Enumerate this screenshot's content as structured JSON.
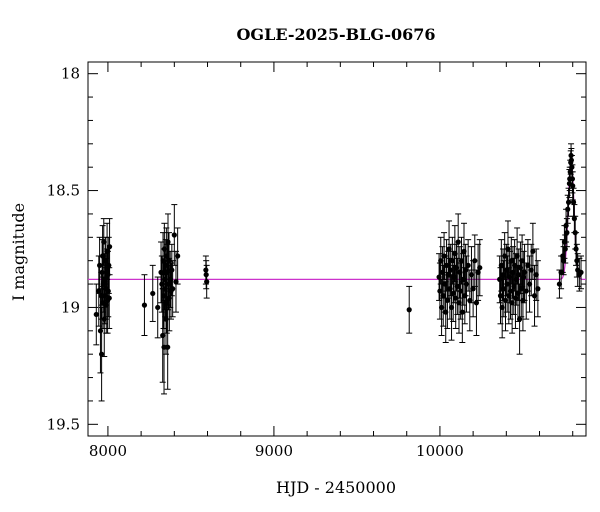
{
  "chart_data": {
    "type": "scatter",
    "title": "OGLE-2025-BLG-0676",
    "xlabel": "HJD - 2450000",
    "ylabel": "I magnitude",
    "xlim": [
      7880,
      10880
    ],
    "ylim": [
      19.55,
      17.95
    ],
    "y_inverted": true,
    "x_ticks": [
      8000,
      9000,
      10000
    ],
    "y_ticks": [
      18,
      18.5,
      19,
      19.5
    ],
    "y_tick_labels": [
      "18",
      "18.5",
      "19",
      "19.5"
    ],
    "colors": {
      "points": "#000000",
      "model": "#cc33cc"
    },
    "model": {
      "name": "",
      "baseline": 18.88,
      "peak_mag": 18.37,
      "t0": 10790,
      "tE": 25
    },
    "series": [
      {
        "points": [
          [
            7930,
            19.03,
            0.13
          ],
          [
            7945,
            18.93,
            0.15
          ],
          [
            7950,
            18.82,
            0.12
          ],
          [
            7955,
            19.1,
            0.18
          ],
          [
            7960,
            18.95,
            0.1
          ],
          [
            7962,
            19.2,
            0.2
          ],
          [
            7965,
            18.85,
            0.14
          ],
          [
            7968,
            18.78,
            0.13
          ],
          [
            7970,
            18.98,
            0.11
          ],
          [
            7972,
            18.9,
            0.12
          ],
          [
            7975,
            18.72,
            0.1
          ],
          [
            7978,
            19.05,
            0.16
          ],
          [
            7980,
            18.88,
            0.11
          ],
          [
            7982,
            18.95,
            0.12
          ],
          [
            7985,
            18.8,
            0.1
          ],
          [
            7988,
            18.92,
            0.13
          ],
          [
            7990,
            18.99,
            0.12
          ],
          [
            7992,
            18.85,
            0.1
          ],
          [
            7995,
            18.76,
            0.12
          ],
          [
            7998,
            18.97,
            0.14
          ],
          [
            8000,
            18.86,
            0.1
          ],
          [
            8002,
            18.93,
            0.11
          ],
          [
            8005,
            18.82,
            0.12
          ],
          [
            8008,
            18.96,
            0.13
          ],
          [
            8010,
            18.74,
            0.12
          ],
          [
            8220,
            18.99,
            0.13
          ],
          [
            8270,
            18.94,
            0.12
          ],
          [
            8300,
            19.0,
            0.13
          ],
          [
            8320,
            18.85,
            0.13
          ],
          [
            8325,
            18.9,
            0.12
          ],
          [
            8330,
            19.12,
            0.2
          ],
          [
            8332,
            18.8,
            0.12
          ],
          [
            8335,
            18.95,
            0.14
          ],
          [
            8338,
            19.17,
            0.2
          ],
          [
            8340,
            18.75,
            0.11
          ],
          [
            8342,
            18.88,
            0.13
          ],
          [
            8345,
            18.92,
            0.12
          ],
          [
            8348,
            18.82,
            0.11
          ],
          [
            8350,
            19.05,
            0.15
          ],
          [
            8352,
            18.78,
            0.12
          ],
          [
            8355,
            18.98,
            0.13
          ],
          [
            8358,
            18.85,
            0.12
          ],
          [
            8360,
            19.17,
            0.18
          ],
          [
            8362,
            18.72,
            0.12
          ],
          [
            8365,
            18.9,
            0.11
          ],
          [
            8368,
            18.8,
            0.12
          ],
          [
            8370,
            18.96,
            0.14
          ],
          [
            8375,
            18.88,
            0.12
          ],
          [
            8380,
            18.93,
            0.12
          ],
          [
            8385,
            18.84,
            0.11
          ],
          [
            8390,
            18.92,
            0.12
          ],
          [
            8400,
            18.69,
            0.13
          ],
          [
            8410,
            18.89,
            0.13
          ],
          [
            8420,
            18.78,
            0.12
          ],
          [
            8590,
            18.84,
            0.06
          ],
          [
            8592,
            18.86,
            0.06
          ],
          [
            8595,
            18.89,
            0.07
          ],
          [
            9815,
            19.01,
            0.1
          ],
          [
            9995,
            18.87,
            0.1
          ],
          [
            10000,
            18.93,
            0.12
          ],
          [
            10005,
            18.8,
            0.1
          ],
          [
            10010,
            19.0,
            0.12
          ],
          [
            10015,
            18.85,
            0.11
          ],
          [
            10020,
            18.95,
            0.13
          ],
          [
            10025,
            18.78,
            0.1
          ],
          [
            10030,
            18.9,
            0.12
          ],
          [
            10035,
            19.02,
            0.13
          ],
          [
            10040,
            18.82,
            0.11
          ],
          [
            10045,
            18.97,
            0.12
          ],
          [
            10050,
            18.86,
            0.1
          ],
          [
            10055,
            18.75,
            0.12
          ],
          [
            10060,
            18.92,
            0.13
          ],
          [
            10065,
            18.84,
            0.11
          ],
          [
            10070,
            19.0,
            0.14
          ],
          [
            10075,
            18.8,
            0.1
          ],
          [
            10080,
            18.94,
            0.12
          ],
          [
            10085,
            18.87,
            0.11
          ],
          [
            10090,
            18.77,
            0.12
          ],
          [
            10095,
            18.96,
            0.13
          ],
          [
            10100,
            18.83,
            0.1
          ],
          [
            10105,
            18.91,
            0.12
          ],
          [
            10110,
            18.72,
            0.12
          ],
          [
            10115,
            18.98,
            0.13
          ],
          [
            10120,
            18.85,
            0.11
          ],
          [
            10125,
            18.93,
            0.12
          ],
          [
            10130,
            18.8,
            0.1
          ],
          [
            10135,
            19.02,
            0.13
          ],
          [
            10140,
            18.88,
            0.11
          ],
          [
            10145,
            18.76,
            0.12
          ],
          [
            10150,
            18.95,
            0.12
          ],
          [
            10155,
            18.84,
            0.11
          ],
          [
            10160,
            18.9,
            0.12
          ],
          [
            10170,
            18.82,
            0.11
          ],
          [
            10180,
            18.97,
            0.13
          ],
          [
            10190,
            18.86,
            0.12
          ],
          [
            10200,
            18.92,
            0.12
          ],
          [
            10210,
            18.8,
            0.11
          ],
          [
            10220,
            18.98,
            0.14
          ],
          [
            10230,
            18.85,
            0.12
          ],
          [
            10240,
            18.83,
            0.12
          ],
          [
            10360,
            18.88,
            0.1
          ],
          [
            10365,
            18.95,
            0.12
          ],
          [
            10370,
            18.82,
            0.11
          ],
          [
            10375,
            19.0,
            0.13
          ],
          [
            10380,
            18.86,
            0.11
          ],
          [
            10385,
            18.92,
            0.12
          ],
          [
            10390,
            18.78,
            0.1
          ],
          [
            10395,
            18.97,
            0.13
          ],
          [
            10400,
            18.84,
            0.11
          ],
          [
            10405,
            18.9,
            0.12
          ],
          [
            10410,
            18.75,
            0.12
          ],
          [
            10415,
            18.95,
            0.12
          ],
          [
            10420,
            18.87,
            0.11
          ],
          [
            10425,
            18.93,
            0.12
          ],
          [
            10430,
            18.8,
            0.1
          ],
          [
            10435,
            18.98,
            0.13
          ],
          [
            10440,
            18.85,
            0.11
          ],
          [
            10445,
            18.91,
            0.12
          ],
          [
            10450,
            18.82,
            0.11
          ],
          [
            10455,
            18.96,
            0.13
          ],
          [
            10460,
            18.88,
            0.11
          ],
          [
            10465,
            18.78,
            0.12
          ],
          [
            10470,
            18.94,
            0.12
          ],
          [
            10475,
            18.86,
            0.11
          ],
          [
            10480,
            19.05,
            0.15
          ],
          [
            10485,
            18.83,
            0.11
          ],
          [
            10490,
            18.92,
            0.12
          ],
          [
            10495,
            18.8,
            0.11
          ],
          [
            10500,
            18.97,
            0.13
          ],
          [
            10505,
            18.87,
            0.11
          ],
          [
            10510,
            18.85,
            0.12
          ],
          [
            10520,
            18.93,
            0.12
          ],
          [
            10530,
            18.82,
            0.11
          ],
          [
            10540,
            18.9,
            0.12
          ],
          [
            10550,
            18.84,
            0.11
          ],
          [
            10560,
            18.76,
            0.12
          ],
          [
            10570,
            18.95,
            0.13
          ],
          [
            10580,
            18.86,
            0.11
          ],
          [
            10590,
            18.92,
            0.12
          ],
          [
            10720,
            18.9,
            0.06
          ],
          [
            10730,
            18.85,
            0.07
          ],
          [
            10740,
            18.78,
            0.07
          ],
          [
            10745,
            18.8,
            0.06
          ],
          [
            10750,
            18.72,
            0.07
          ],
          [
            10755,
            18.75,
            0.06
          ],
          [
            10760,
            18.65,
            0.07
          ],
          [
            10765,
            18.68,
            0.06
          ],
          [
            10770,
            18.58,
            0.06
          ],
          [
            10775,
            18.55,
            0.06
          ],
          [
            10780,
            18.47,
            0.06
          ],
          [
            10782,
            18.45,
            0.05
          ],
          [
            10785,
            18.42,
            0.05
          ],
          [
            10788,
            18.38,
            0.05
          ],
          [
            10790,
            18.35,
            0.05
          ],
          [
            10792,
            18.37,
            0.05
          ],
          [
            10795,
            18.4,
            0.05
          ],
          [
            10798,
            18.45,
            0.06
          ],
          [
            10800,
            18.48,
            0.06
          ],
          [
            10805,
            18.55,
            0.06
          ],
          [
            10810,
            18.62,
            0.06
          ],
          [
            10815,
            18.68,
            0.07
          ],
          [
            10820,
            18.75,
            0.07
          ],
          [
            10825,
            18.8,
            0.07
          ],
          [
            10830,
            18.84,
            0.07
          ],
          [
            10840,
            18.86,
            0.07
          ],
          [
            10850,
            18.85,
            0.07
          ]
        ]
      }
    ]
  }
}
